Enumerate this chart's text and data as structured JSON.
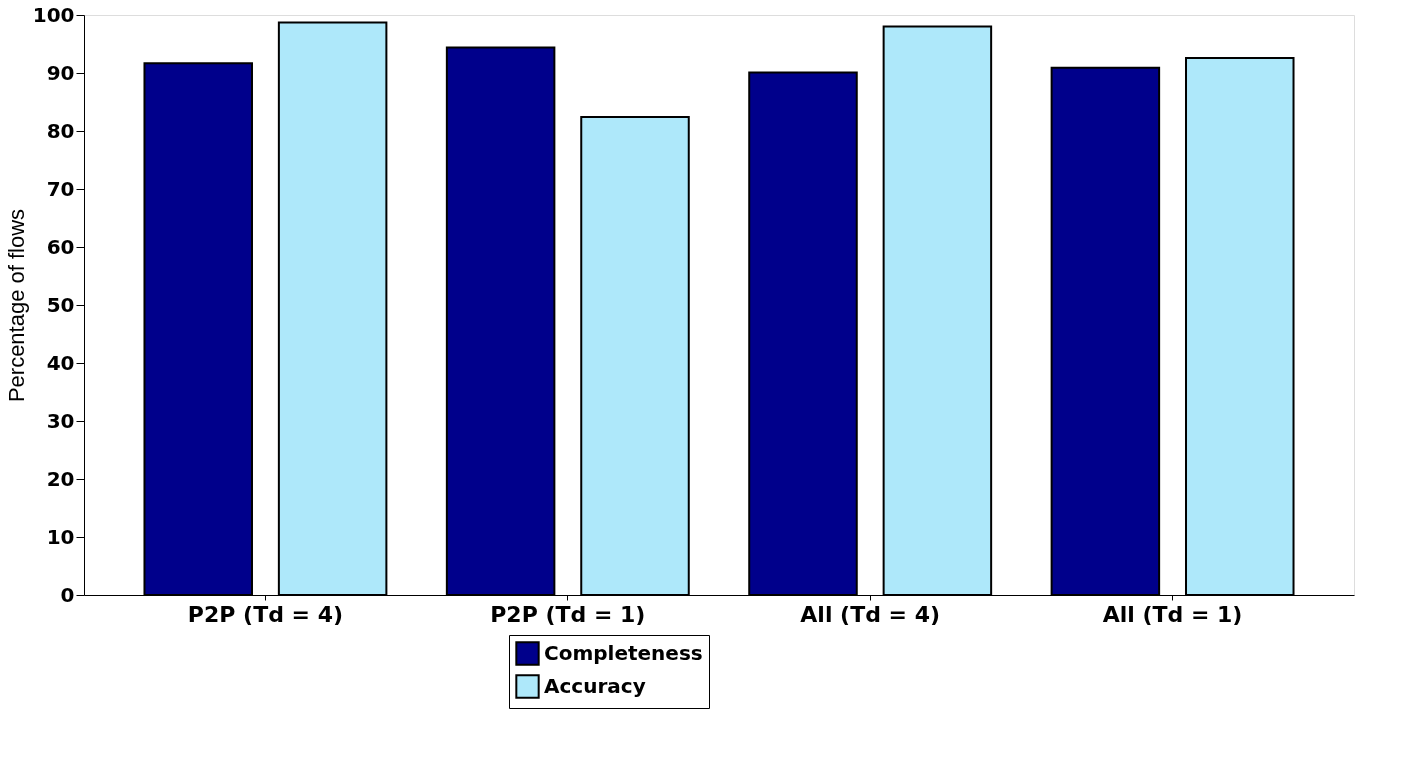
{
  "chart_data": {
    "type": "bar",
    "ylabel": "Percentage of flows",
    "categories": [
      "P2P (Td = 4)",
      "P2P (Td = 1)",
      "All (Td = 4)",
      "All (Td = 1)"
    ],
    "series": [
      {
        "name": "Completeness",
        "color": "#00008b",
        "values": [
          91.7,
          94.4,
          90.1,
          90.9
        ]
      },
      {
        "name": "Accuracy",
        "color": "#aee8fa",
        "values": [
          98.7,
          82.4,
          98.0,
          92.6
        ]
      }
    ],
    "ylim": [
      0,
      100
    ],
    "yticks": [
      0,
      10,
      20,
      30,
      40,
      50,
      60,
      70,
      80,
      90,
      100
    ],
    "grid": false,
    "legend": "bottom"
  }
}
